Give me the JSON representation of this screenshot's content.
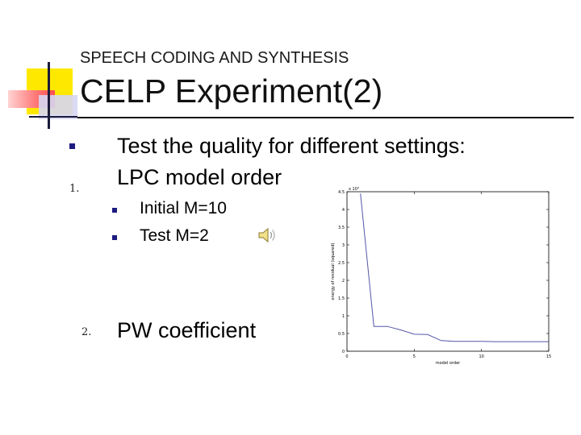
{
  "slide": {
    "kicker": "SPEECH CODING AND SYNTHESIS",
    "title": "CELP Experiment(2)"
  },
  "items": [
    {
      "marker": "",
      "text": "Test the quality for different settings:"
    },
    {
      "marker": "1.",
      "text": "LPC model order"
    },
    {
      "marker": "2.",
      "text": "PW coefficient"
    }
  ],
  "subitems": [
    {
      "text": "Initial M=10"
    },
    {
      "text": "Test   M=2"
    }
  ],
  "icons": {
    "audio": "speaker-icon",
    "bullet": "square-bullet-icon"
  },
  "colors": {
    "bullet": "#1c1c80",
    "accent_yellow": "#ffe800",
    "accent_red": "#ff4d4d",
    "line": "#5555aa"
  },
  "chart_data": {
    "type": "line",
    "title": "",
    "xlabel": "model order",
    "ylabel": "energy of residual (squared)",
    "y_multiplier_label": "x 10⁴",
    "xlim": [
      0,
      15
    ],
    "ylim": [
      0,
      4.5
    ],
    "xticks": [
      "0",
      "5",
      "10",
      "15"
    ],
    "yticks": [
      "0",
      "0.5",
      "1",
      "1.5",
      "2",
      "2.5",
      "3",
      "3.5",
      "4",
      "4.5"
    ],
    "series": [
      {
        "x": [
          1,
          2,
          3,
          4,
          5,
          6,
          7,
          8,
          9,
          10,
          11,
          12,
          13,
          14,
          15
        ],
        "y": [
          4.45,
          0.7,
          0.7,
          0.6,
          0.48,
          0.47,
          0.3,
          0.28,
          0.28,
          0.28,
          0.27,
          0.27,
          0.27,
          0.27,
          0.27
        ]
      }
    ]
  }
}
